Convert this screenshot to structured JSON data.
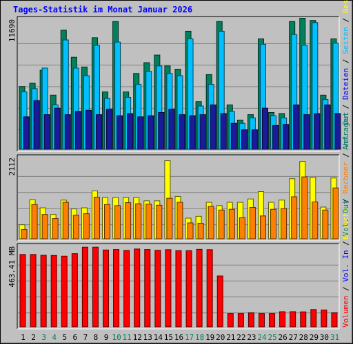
{
  "chart_data": {
    "title": "Tages-Statistik im Monat Januar 2026",
    "categories": [
      "1",
      "2",
      "3",
      "4",
      "5",
      "6",
      "7",
      "8",
      "9",
      "10",
      "11",
      "12",
      "13",
      "14",
      "15",
      "16",
      "17",
      "18",
      "19",
      "20",
      "21",
      "22",
      "23",
      "24",
      "25",
      "26",
      "27",
      "28",
      "29",
      "30",
      "31"
    ],
    "weekend_days": [
      "3",
      "4",
      "10",
      "11",
      "17",
      "18",
      "24",
      "25",
      "31"
    ],
    "panels": [
      {
        "type": "bar",
        "name": "requests",
        "max_label": "11690",
        "ylim": [
          0,
          11690
        ],
        "side_label_parts": [
          {
            "text": "Anfragen",
            "color": "#00805c"
          },
          {
            "text": " / ",
            "color": "#000000"
          },
          {
            "text": "Dateien",
            "color": "#0000ff"
          },
          {
            "text": " / ",
            "color": "#000000"
          },
          {
            "text": "Seiten",
            "color": "#00c0ff"
          },
          {
            "text": " / ",
            "color": "#000000"
          },
          {
            "text": "Besuche",
            "color": "#ffff00"
          }
        ],
        "series": [
          {
            "name": "Anfragen",
            "color": "#00805c",
            "values": [
              5800,
              6100,
              7300,
              5000,
              11000,
              8500,
              7600,
              10300,
              5300,
              11800,
              5300,
              7000,
              8000,
              8700,
              7700,
              7400,
              10900,
              4400,
              6900,
              11800,
              4100,
              2700,
              3200,
              10200,
              3400,
              3300,
              11800,
              12100,
              11900,
              5000,
              10200
            ]
          },
          {
            "name": "Dateien",
            "color": "#00c0ff",
            "values": [
              5300,
              5600,
              7500,
              4100,
              10100,
              7500,
              6800,
              9600,
              4700,
              9900,
              4800,
              6000,
              7200,
              7700,
              7000,
              6800,
              10200,
              4000,
              6000,
              10900,
              3500,
              2400,
              2900,
              9700,
              3100,
              2900,
              10600,
              9600,
              11700,
              4600,
              9800
            ]
          },
          {
            "name": "Seiten",
            "color": "#1a1a9a",
            "values": [
              3000,
              4500,
              3200,
              3800,
              3200,
              3500,
              3600,
              3200,
              3700,
              3100,
              3300,
              3000,
              3100,
              3400,
              3700,
              3200,
              3100,
              3200,
              4100,
              3300,
              2400,
              1800,
              1800,
              3800,
              2200,
              2300,
              4100,
              3200,
              3300,
              4100,
              3300
            ]
          }
        ]
      },
      {
        "type": "bar",
        "name": "visits",
        "max_label": "2112",
        "ylim": [
          0,
          2112
        ],
        "side_label_parts": [
          {
            "text": "Besuche",
            "color": "#ffff00"
          },
          {
            "text": " / ",
            "color": "#000000"
          },
          {
            "text": "Rechner",
            "color": "#ff8000"
          },
          {
            "text": " / ",
            "color": "#000000"
          },
          {
            "text": "Vol. Out",
            "color": "#008080"
          }
        ],
        "series": [
          {
            "name": "Besuche",
            "color": "#ffff00",
            "values": [
              380,
              1060,
              840,
              660,
              1050,
              810,
              840,
              1300,
              1120,
              1120,
              1120,
              1120,
              1030,
              1030,
              2120,
              1150,
              560,
              610,
              990,
              900,
              990,
              990,
              1080,
              1280,
              990,
              1050,
              1630,
              2100,
              1670,
              860,
              1650
            ]
          },
          {
            "name": "Rechner",
            "color": "#ff8000",
            "values": [
              250,
              930,
              660,
              550,
              990,
              640,
              680,
              1130,
              930,
              900,
              980,
              950,
              940,
              910,
              1100,
              990,
              430,
              420,
              880,
              780,
              800,
              570,
              850,
              620,
              800,
              820,
              1140,
              1680,
              1000,
              780,
              1380
            ]
          }
        ]
      },
      {
        "type": "bar",
        "name": "volume",
        "max_label": "463.41 MB",
        "ylim": [
          0,
          463.41
        ],
        "side_label_parts": [
          {
            "text": "Volumen",
            "color": "#ff0000"
          },
          {
            "text": " / ",
            "color": "#000000"
          },
          {
            "text": "Vol. In",
            "color": "#0000ff"
          },
          {
            "text": " / ",
            "color": "#000000"
          },
          {
            "text": "Vol. Out",
            "color": "#008080"
          }
        ],
        "series": [
          {
            "name": "Volumen",
            "color": "#ff0000",
            "values": [
              435,
              435,
              430,
              429,
              425,
              440,
              479,
              479,
              462,
              465,
              459,
              468,
              465,
              460,
              464,
              458,
              458,
              466,
              464,
              306,
              80,
              80,
              84,
              80,
              80,
              91,
              91,
              90,
              104,
              101,
              84
            ]
          }
        ]
      }
    ]
  }
}
